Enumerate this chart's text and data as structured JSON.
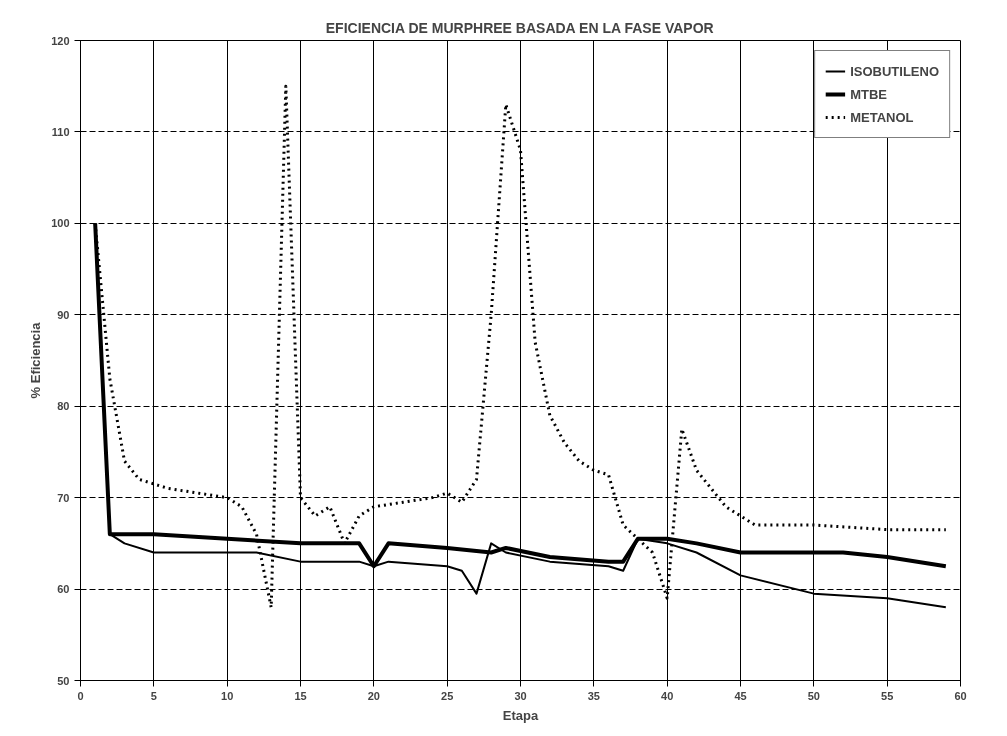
{
  "chart_data": {
    "type": "line",
    "title": "EFICIENCIA DE MURPHREE BASADA EN LA FASE VAPOR",
    "xlabel": "Etapa",
    "ylabel": "% Eficiencia",
    "xlim": [
      0,
      60
    ],
    "xticks": [
      0,
      5,
      10,
      15,
      20,
      25,
      30,
      35,
      40,
      45,
      50,
      55,
      60
    ],
    "ylim": [
      50,
      120
    ],
    "yticks": [
      50,
      60,
      70,
      80,
      90,
      100,
      110,
      120
    ],
    "grid": true,
    "legend": "top right",
    "marker": "none",
    "series": [
      {
        "name": "ISOBUTILENO",
        "color": "#000000",
        "line_style": "solid",
        "x": [
          1,
          2,
          3,
          5,
          8,
          12,
          15,
          19,
          20,
          21,
          25,
          26,
          27,
          28,
          29,
          32,
          36,
          37,
          38,
          40,
          42,
          45,
          50,
          55,
          59
        ],
        "values": [
          100,
          66,
          65,
          64,
          64,
          64,
          63,
          63,
          62.5,
          63,
          62.5,
          62,
          59.5,
          65,
          64,
          63,
          62.5,
          62,
          65.5,
          65,
          64,
          61.5,
          59.5,
          59,
          58
        ]
      },
      {
        "name": "MTBE",
        "color": "#000000",
        "line_style": "solid",
        "x": [
          1,
          2,
          3,
          5,
          10,
          15,
          19,
          20,
          21,
          25,
          28,
          29,
          32,
          36,
          37,
          38,
          40,
          42,
          45,
          48,
          52,
          55,
          59
        ],
        "values": [
          100,
          66,
          66,
          66,
          65.5,
          65,
          65,
          62.5,
          65,
          64.5,
          64,
          64.5,
          63.5,
          63,
          63,
          65.5,
          65.5,
          65,
          64,
          64,
          64,
          63.5,
          62.5
        ]
      },
      {
        "name": "METANOL",
        "color": "#000000",
        "line_style": "dotted",
        "x": [
          1,
          2,
          3,
          4,
          5,
          6,
          8,
          10,
          11,
          12,
          13,
          14,
          15,
          16,
          17,
          18,
          19,
          20,
          22,
          24,
          25,
          26,
          27,
          28,
          29,
          30,
          31,
          32,
          33,
          34,
          35,
          36,
          37,
          38,
          39,
          40,
          41,
          42,
          43,
          44,
          45,
          46,
          48,
          50,
          55,
          59
        ],
        "values": [
          100,
          83,
          74,
          72,
          71.5,
          71,
          70.5,
          70,
          69,
          66,
          58,
          115,
          70,
          68,
          69,
          65,
          68,
          69,
          69.5,
          70,
          70.5,
          69.5,
          72,
          90,
          113,
          108,
          87,
          79,
          76,
          74,
          73,
          72.5,
          67,
          65.5,
          64,
          59,
          77.5,
          73,
          71,
          69,
          68,
          67,
          67,
          67,
          66.5,
          66.5
        ]
      }
    ]
  }
}
